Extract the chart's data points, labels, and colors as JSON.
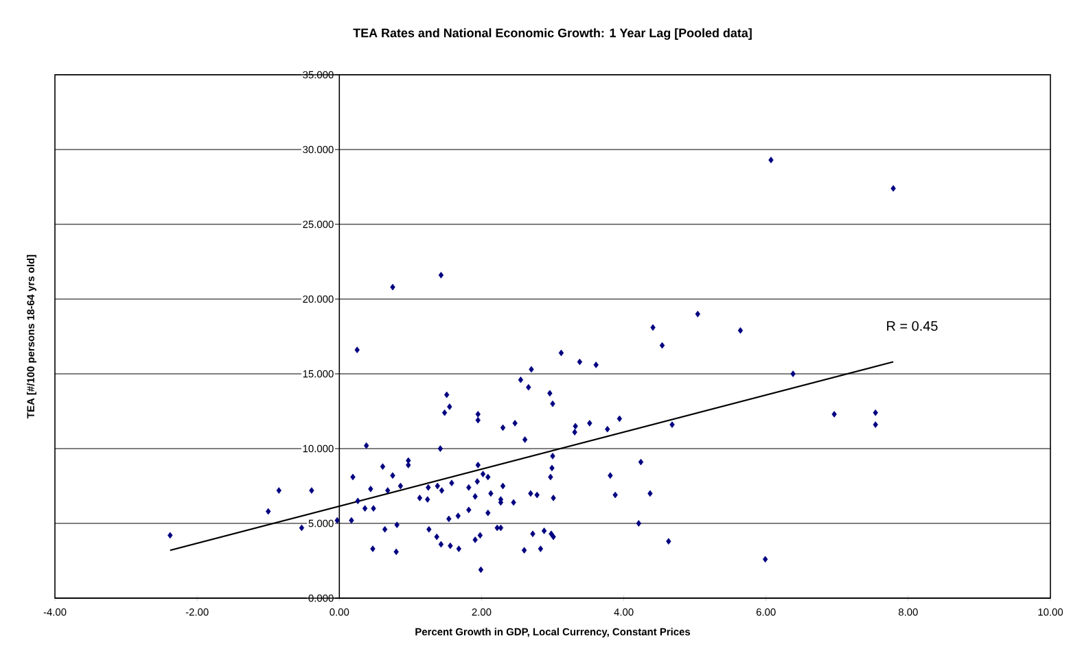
{
  "chart_data": {
    "type": "scatter",
    "title": "TEA Rates and National Economic Growth: 1 Year Lag [Pooled data]",
    "xlabel": "Percent Growth in GDP, Local Currency, Constant Prices",
    "ylabel": "TEA [#/100 persons 18-64 yrs old]",
    "xlim": [
      -4,
      10
    ],
    "ylim": [
      0,
      35
    ],
    "xticks": [
      {
        "value": -4,
        "label": "-4.00"
      },
      {
        "value": -2,
        "label": "-2.00"
      },
      {
        "value": 0,
        "label": "0.00"
      },
      {
        "value": 2,
        "label": "2.00"
      },
      {
        "value": 4,
        "label": "4.00"
      },
      {
        "value": 6,
        "label": "6.00"
      },
      {
        "value": 8,
        "label": "8.00"
      },
      {
        "value": 10,
        "label": "10.00"
      }
    ],
    "yticks": [
      {
        "value": 0,
        "label": "0.000"
      },
      {
        "value": 5,
        "label": "5.000"
      },
      {
        "value": 10,
        "label": "10.000"
      },
      {
        "value": 15,
        "label": "15.000"
      },
      {
        "value": 20,
        "label": "20.000"
      },
      {
        "value": 25,
        "label": "25.000"
      },
      {
        "value": 30,
        "label": "30.000"
      },
      {
        "value": 35,
        "label": "35.000"
      }
    ],
    "grid": "y",
    "annotations": [
      "R = 0.45"
    ],
    "series": [
      {
        "color": "#000080",
        "marker": "diamond",
        "x": [
          -2.38,
          -1.0,
          -0.85,
          -0.53,
          -0.39,
          -0.03,
          0.17,
          0.25,
          0.19,
          0.38,
          0.26,
          0.44,
          0.36,
          0.48,
          0.47,
          0.61,
          0.64,
          0.75,
          1.43,
          0.75,
          0.68,
          0.81,
          0.8,
          0.86,
          0.97,
          0.97,
          1.13,
          1.24,
          1.25,
          1.26,
          1.37,
          1.43,
          1.38,
          1.44,
          1.42,
          1.48,
          1.51,
          1.55,
          1.54,
          1.58,
          1.56,
          1.67,
          1.68,
          1.82,
          1.82,
          1.91,
          1.94,
          1.95,
          1.95,
          1.95,
          1.91,
          1.98,
          1.99,
          2.02,
          2.09,
          2.09,
          2.13,
          2.22,
          2.27,
          2.27,
          2.27,
          2.3,
          2.3,
          2.45,
          2.47,
          2.55,
          2.66,
          2.7,
          2.61,
          2.69,
          2.78,
          2.72,
          2.6,
          2.83,
          2.88,
          2.98,
          3.01,
          2.97,
          2.99,
          3.0,
          3.01,
          2.96,
          3.0,
          3.12,
          3.38,
          3.61,
          3.31,
          3.32,
          3.52,
          3.77,
          3.94,
          3.81,
          3.88,
          4.21,
          4.24,
          4.37,
          4.41,
          4.54,
          4.63,
          4.68,
          6.07,
          7.79,
          5.04,
          5.64,
          6.38,
          6.96,
          7.54,
          7.54,
          5.99
        ],
        "values": [
          4.2,
          5.8,
          7.2,
          4.7,
          7.2,
          5.2,
          5.2,
          16.6,
          8.1,
          10.2,
          6.5,
          7.3,
          6.0,
          6.0,
          3.3,
          8.8,
          4.6,
          20.8,
          21.6,
          8.2,
          7.2,
          4.9,
          3.1,
          7.5,
          9.2,
          8.9,
          6.7,
          6.6,
          7.4,
          4.6,
          4.1,
          3.6,
          7.5,
          7.2,
          10.0,
          12.4,
          13.6,
          12.8,
          5.3,
          7.7,
          3.5,
          5.5,
          3.3,
          7.4,
          5.9,
          6.8,
          7.8,
          8.9,
          12.3,
          11.9,
          3.9,
          4.2,
          1.9,
          8.3,
          8.1,
          5.7,
          7.0,
          4.7,
          4.7,
          6.6,
          6.4,
          7.5,
          11.4,
          6.4,
          11.7,
          14.6,
          14.1,
          15.3,
          10.6,
          7.0,
          6.9,
          4.3,
          3.2,
          3.3,
          4.5,
          4.3,
          4.1,
          8.1,
          8.7,
          9.5,
          6.7,
          13.7,
          13.0,
          16.4,
          15.8,
          15.6,
          11.1,
          11.5,
          11.7,
          11.3,
          12.0,
          8.2,
          6.9,
          5.0,
          9.1,
          7.0,
          18.1,
          16.9,
          3.8,
          11.6,
          29.3,
          27.4,
          19.0,
          17.9,
          15.0,
          12.3,
          12.4,
          11.6,
          2.6
        ]
      },
      {
        "type": "line",
        "color": "#000000",
        "x": [
          -2.38,
          7.79
        ],
        "values": [
          3.2,
          15.8
        ]
      }
    ]
  }
}
